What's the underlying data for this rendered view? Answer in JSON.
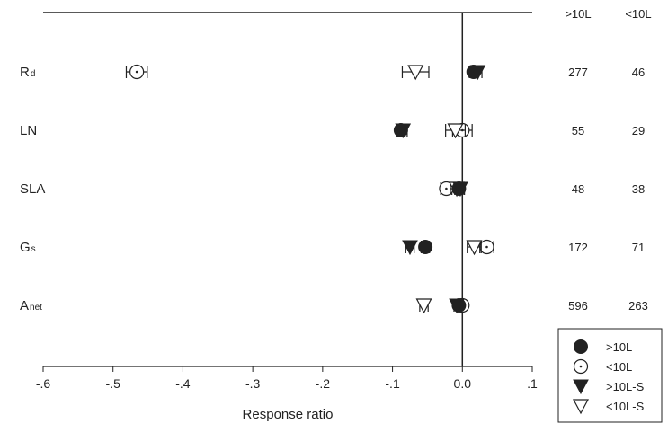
{
  "chart_data": {
    "type": "scatter",
    "xlabel": "Response ratio",
    "xlim": [
      -0.6,
      0.1
    ],
    "xticks": [
      -0.6,
      -0.5,
      -0.4,
      -0.3,
      -0.2,
      -0.1,
      0.0,
      0.1
    ],
    "xtick_labels": [
      "-.6",
      "-.5",
      "-.4",
      "-.3",
      "-.2",
      "-.1",
      "0.0",
      ".1"
    ],
    "categories": [
      {
        "main": "R",
        "sub": "d"
      },
      {
        "main": "LN",
        "sub": ""
      },
      {
        "main": "SLA",
        "sub": ""
      },
      {
        "main": "G",
        "sub": "s"
      },
      {
        "main": "A",
        "sub": "net"
      }
    ],
    "count_headers": [
      ">10L",
      "<10L"
    ],
    "counts": [
      [
        277,
        46
      ],
      [
        55,
        29
      ],
      [
        48,
        38
      ],
      [
        172,
        71
      ],
      [
        596,
        263
      ]
    ],
    "series": [
      {
        "name": ">10L",
        "marker": "filled-circle",
        "values": [
          0.016,
          -0.088,
          -0.005,
          -0.053,
          -0.005
        ],
        "err": [
          0.006,
          0.006,
          0.006,
          0.006,
          0.004
        ]
      },
      {
        "name": "<10L",
        "marker": "open-circle",
        "values": [
          -0.466,
          0.0,
          -0.023,
          0.035,
          0.0
        ],
        "err": [
          0.015,
          0.014,
          0.008,
          0.01,
          0.005
        ]
      },
      {
        "name": ">10L-S",
        "marker": "filled-triangle-down",
        "values": [
          0.022,
          -0.085,
          -0.003,
          -0.075,
          -0.008
        ],
        "err": [
          0.006,
          0.006,
          0.006,
          0.006,
          0.004
        ]
      },
      {
        "name": "<10L-S",
        "marker": "open-triangle-down",
        "values": [
          -0.067,
          -0.01,
          -0.008,
          0.017,
          -0.055
        ],
        "err": [
          0.019,
          0.014,
          0.009,
          0.01,
          0.006
        ]
      }
    ],
    "legend_position": "bottom-right",
    "grid": false
  }
}
